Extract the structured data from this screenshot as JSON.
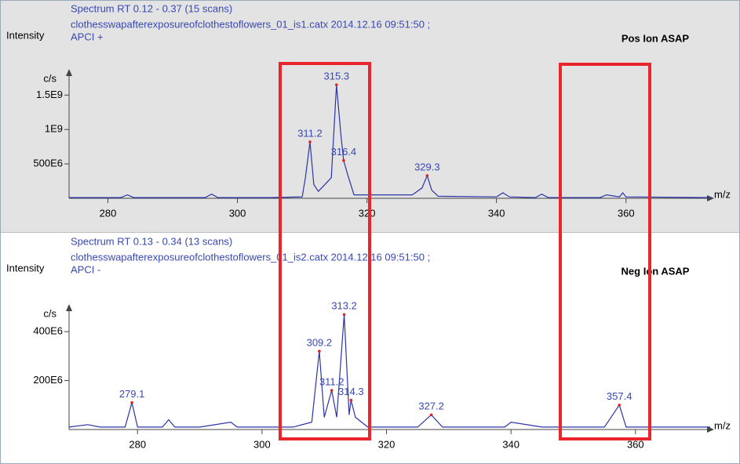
{
  "chart_data": [
    {
      "type": "line",
      "title": "Spectrum RT 0.12 - 0.37 (15 scans)",
      "subtitle": "clothesswapafterexposureofclothestoflowers_01_is1.catx 2014.12.16 09:51:50 ;",
      "mode": "APCI +",
      "annotation": "Pos Ion ASAP",
      "ylabel": "Intensity",
      "yunit": "c/s",
      "xlabel": "m/z",
      "background": "#e3e3e3",
      "xlim": [
        274,
        373
      ],
      "xticks": [
        280,
        300,
        320,
        340,
        360
      ],
      "ylim": [
        0,
        1800000000.0
      ],
      "yticks": [
        {
          "value": 500000000.0,
          "label": "500E6"
        },
        {
          "value": 1000000000.0,
          "label": "1E9"
        },
        {
          "value": 1500000000.0,
          "label": "1.5E9"
        }
      ],
      "x": [
        274,
        282,
        283,
        284,
        290,
        295,
        296,
        297,
        305,
        310,
        310.5,
        311.2,
        311.8,
        312.5,
        314.5,
        315.3,
        316,
        316.4,
        317,
        318,
        327,
        328.5,
        329.3,
        330,
        331,
        340,
        341,
        342,
        346,
        347,
        348,
        356,
        357,
        359,
        359.5,
        360,
        373
      ],
      "series": [
        {
          "color": "#2b34a8",
          "values": [
            10000000.0,
            10000000.0,
            50000000.0,
            10000000.0,
            10000000.0,
            10000000.0,
            60000000.0,
            10000000.0,
            10000000.0,
            20000000.0,
            300000000.0,
            820000000.0,
            200000000.0,
            100000000.0,
            300000000.0,
            1650000000.0,
            900000000.0,
            550000000.0,
            350000000.0,
            50000000.0,
            50000000.0,
            150000000.0,
            330000000.0,
            120000000.0,
            30000000.0,
            20000000.0,
            80000000.0,
            20000000.0,
            10000000.0,
            60000000.0,
            10000000.0,
            10000000.0,
            50000000.0,
            20000000.0,
            80000000.0,
            20000000.0,
            10000000.0
          ]
        }
      ],
      "peaks": {
        "x": [
          311.2,
          315.3,
          316.4,
          329.3
        ],
        "y": [
          820000000.0,
          1650000000.0,
          550000000.0,
          330000000.0
        ]
      }
    },
    {
      "type": "line",
      "title": "Spectrum RT 0.13 - 0.34 (13 scans)",
      "subtitle": "clothesswapafterexposureofclothestoflowers_01_is2.catx 2014.12.16 09:51:50 ;",
      "mode": "APCI -",
      "annotation": "Neg Ion ASAP",
      "ylabel": "Intensity",
      "yunit": "c/s",
      "xlabel": "m/z",
      "background": "#ffffff",
      "xlim": [
        269,
        372
      ],
      "xticks": [
        280,
        300,
        320,
        340,
        360
      ],
      "ylim": [
        0,
        490000000.0
      ],
      "yticks": [
        {
          "value": 200000000.0,
          "label": "200E6"
        },
        {
          "value": 400000000.0,
          "label": "400E6"
        }
      ],
      "x": [
        269,
        272,
        274,
        278,
        279.1,
        280,
        284,
        285,
        286,
        290,
        295,
        296,
        300,
        305,
        308,
        309.2,
        310,
        311.2,
        312,
        313.2,
        314,
        314.3,
        315,
        317,
        325,
        327.2,
        329,
        339,
        340,
        345,
        350,
        355,
        357.4,
        358.5,
        362,
        372
      ],
      "series": [
        {
          "color": "#2b34a8",
          "values": [
            10000000.0,
            20000000.0,
            10000000.0,
            10000000.0,
            110000000.0,
            10000000.0,
            10000000.0,
            40000000.0,
            10000000.0,
            10000000.0,
            30000000.0,
            10000000.0,
            10000000.0,
            10000000.0,
            30000000.0,
            320000000.0,
            50000000.0,
            160000000.0,
            50000000.0,
            470000000.0,
            60000000.0,
            120000000.0,
            50000000.0,
            10000000.0,
            10000000.0,
            60000000.0,
            10000000.0,
            10000000.0,
            30000000.0,
            10000000.0,
            10000000.0,
            10000000.0,
            100000000.0,
            10000000.0,
            10000000.0,
            10000000.0
          ]
        }
      ],
      "peaks": {
        "x": [
          279.1,
          309.2,
          311.2,
          313.2,
          314.3,
          327.2,
          357.4
        ],
        "y": [
          110000000.0,
          320000000.0,
          160000000.0,
          470000000.0,
          120000000.0,
          60000000.0,
          100000000.0
        ]
      }
    }
  ]
}
